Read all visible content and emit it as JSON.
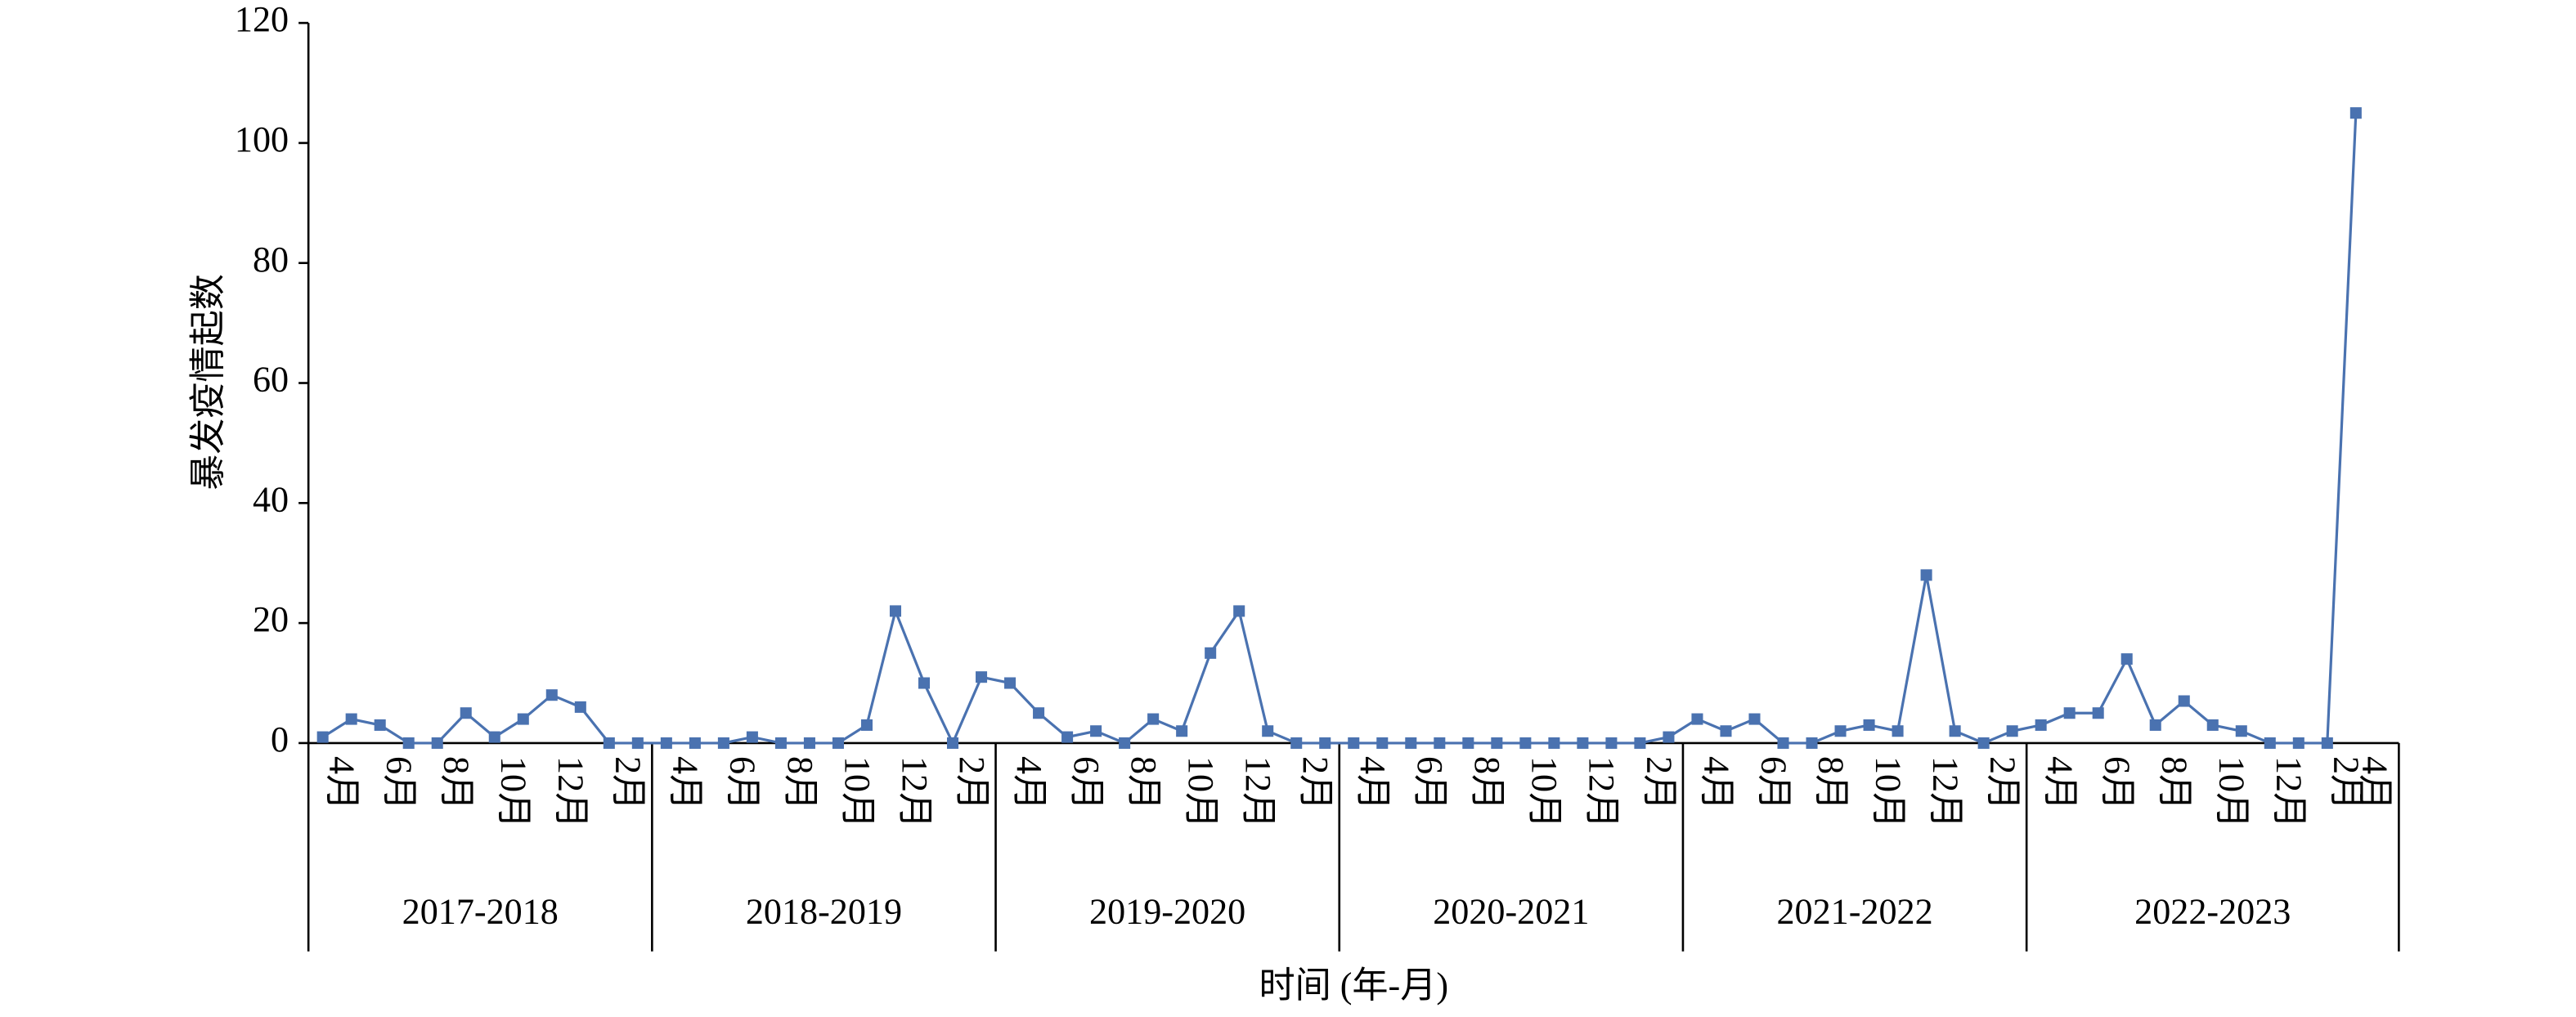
{
  "chart_data": {
    "type": "line",
    "y_label": "暴发疫情起数",
    "x_label": "时间 (年-月)",
    "groups": [
      {
        "label": "2017-2018",
        "categories": [
          null,
          "4月",
          null,
          "6月",
          null,
          "8月",
          null,
          "10月",
          null,
          "12月",
          null,
          "2月"
        ]
      },
      {
        "label": "2018-2019",
        "categories": [
          null,
          "4月",
          null,
          "6月",
          null,
          "8月",
          null,
          "10月",
          null,
          "12月",
          null,
          "2月"
        ]
      },
      {
        "label": "2019-2020",
        "categories": [
          null,
          "4月",
          null,
          "6月",
          null,
          "8月",
          null,
          "10月",
          null,
          "12月",
          null,
          "2月"
        ]
      },
      {
        "label": "2020-2021",
        "categories": [
          null,
          "4月",
          null,
          "6月",
          null,
          "8月",
          null,
          "10月",
          null,
          "12月",
          null,
          "2月"
        ]
      },
      {
        "label": "2021-2022",
        "categories": [
          null,
          "4月",
          null,
          "6月",
          null,
          "8月",
          null,
          "10月",
          null,
          "12月",
          null,
          "2月"
        ]
      },
      {
        "label": "2022-2023",
        "categories": [
          null,
          "4月",
          null,
          "6月",
          null,
          "8月",
          null,
          "10月",
          null,
          "12月",
          null,
          "2月",
          "4月"
        ]
      }
    ],
    "series": [
      {
        "color": "#4a72b0",
        "values": [
          1,
          4,
          3,
          0,
          0,
          5,
          1,
          4,
          8,
          6,
          0,
          0,
          0,
          0,
          0,
          1,
          0,
          0,
          0,
          3,
          22,
          10,
          0,
          11,
          10,
          5,
          1,
          2,
          0,
          4,
          2,
          15,
          22,
          2,
          0,
          0,
          0,
          0,
          0,
          0,
          0,
          0,
          0,
          0,
          0,
          0,
          0,
          1,
          4,
          2,
          4,
          0,
          0,
          2,
          3,
          2,
          28,
          2,
          0,
          2,
          3,
          5,
          5,
          14,
          3,
          7,
          3,
          2,
          0,
          0,
          0,
          105,
          null
        ]
      }
    ],
    "ylim": [
      0,
      120
    ],
    "yticks": [
      0,
      20,
      40,
      60,
      80,
      100,
      120
    ],
    "grid": false,
    "markers": "square"
  }
}
